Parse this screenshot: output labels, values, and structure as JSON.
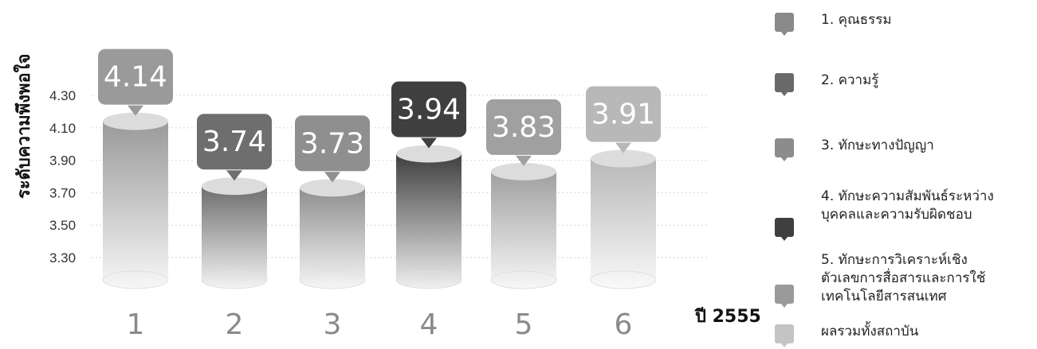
{
  "chart_data": {
    "type": "bar",
    "ylabel": "ระดับความพึงพอใจ",
    "xlabel": "ปี 2555",
    "categories": [
      "1",
      "2",
      "3",
      "4",
      "5",
      "6"
    ],
    "values": [
      4.14,
      3.74,
      3.73,
      3.94,
      3.83,
      3.91
    ],
    "value_labels": [
      "4.14",
      "3.74",
      "3.73",
      "3.94",
      "3.83",
      "3.91"
    ],
    "yticks": [
      "4.30",
      "4.10",
      "3.90",
      "3.70",
      "3.50",
      "3.30"
    ],
    "ylim": [
      3.1,
      4.3
    ],
    "grid": true,
    "bar_colors": [
      "#9a9a9a",
      "#6e6e6e",
      "#8f8f8f",
      "#3f3f3f",
      "#a0a0a0",
      "#b8b8b8"
    ],
    "legend_position": "right",
    "legend": [
      {
        "label": "1. คุณธรรม",
        "color": "#8a8a8a"
      },
      {
        "label": "2. ความรู้",
        "color": "#6a6a6a"
      },
      {
        "label": "3. ทักษะทางปัญญา",
        "color": "#8c8c8c"
      },
      {
        "label": "4. ทักษะความสัมพันธ์ระหว่าง\nบุคคลและความรับผิดชอบ",
        "color": "#3f3f3f"
      },
      {
        "label": "5. ทักษะการวิเคราะห์เชิง\nตัวเลขการสื่อสารและการใช้\nเทคโนโลยีสารสนเทศ",
        "color": "#9a9a9a"
      },
      {
        "label": "ผลรวมทั้งสถาบัน",
        "color": "#c4c4c4"
      }
    ]
  }
}
